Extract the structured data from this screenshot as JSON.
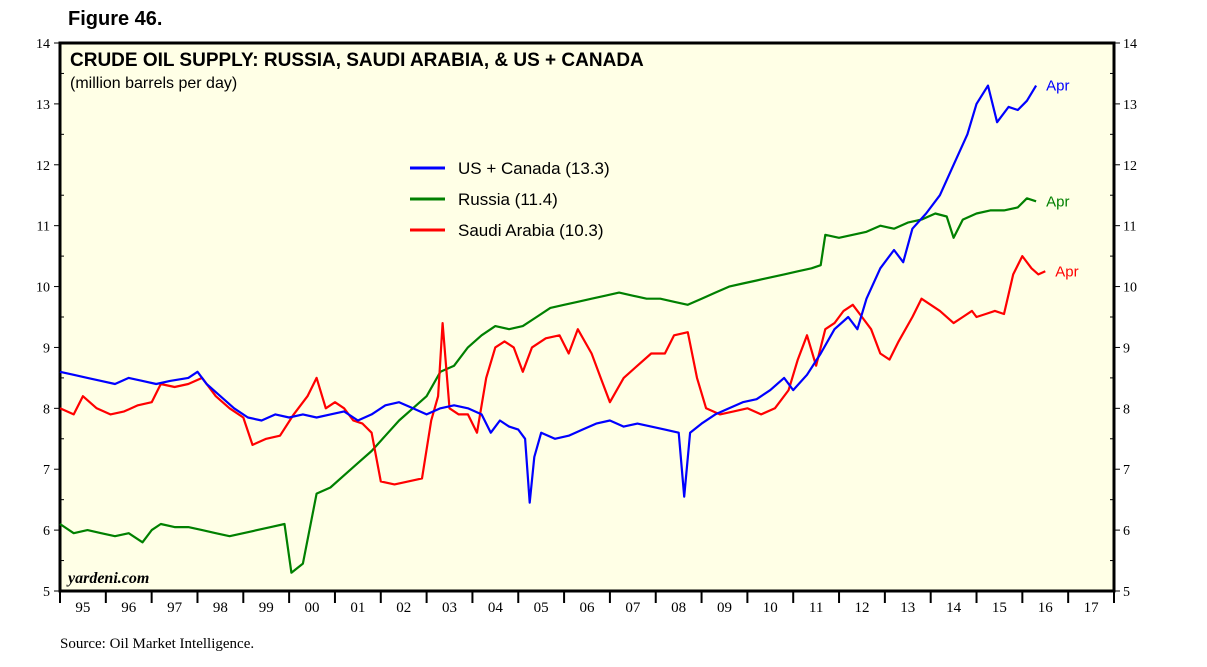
{
  "figure_label": "Figure 46.",
  "source_note": "Source: Oil Market Intelligence.",
  "colors": {
    "panel_bg": "#ffffe6",
    "us_canada": "#0000ff",
    "russia": "#008000",
    "saudi_arabia": "#ff0000"
  },
  "chart_data": {
    "type": "line",
    "title": "CRUDE OIL SUPPLY: RUSSIA, SAUDI ARABIA, & US + CANADA",
    "subtitle": "(million barrels per day)",
    "watermark": "yardeni.com",
    "ylim": [
      5,
      14
    ],
    "y_ticks": [
      5,
      6,
      7,
      8,
      9,
      10,
      11,
      12,
      13,
      14
    ],
    "x_range": [
      1995,
      2018
    ],
    "x_tick_labels": [
      "95",
      "96",
      "97",
      "98",
      "99",
      "00",
      "01",
      "02",
      "03",
      "04",
      "05",
      "06",
      "07",
      "08",
      "09",
      "10",
      "11",
      "12",
      "13",
      "14",
      "15",
      "16",
      "17"
    ],
    "grid": false,
    "legend_placement": "upper-center",
    "end_label": "Apr",
    "series": [
      {
        "name": "US + Canada (13.3)",
        "color": "#0000ff",
        "points": [
          [
            1995.0,
            8.6
          ],
          [
            1995.3,
            8.55
          ],
          [
            1995.6,
            8.5
          ],
          [
            1995.9,
            8.45
          ],
          [
            1996.2,
            8.4
          ],
          [
            1996.5,
            8.5
          ],
          [
            1996.8,
            8.45
          ],
          [
            1997.1,
            8.4
          ],
          [
            1997.4,
            8.45
          ],
          [
            1997.8,
            8.5
          ],
          [
            1998.0,
            8.6
          ],
          [
            1998.2,
            8.4
          ],
          [
            1998.5,
            8.2
          ],
          [
            1998.8,
            8.0
          ],
          [
            1999.1,
            7.85
          ],
          [
            1999.4,
            7.8
          ],
          [
            1999.7,
            7.9
          ],
          [
            2000.0,
            7.85
          ],
          [
            2000.3,
            7.9
          ],
          [
            2000.6,
            7.85
          ],
          [
            2000.9,
            7.9
          ],
          [
            2001.2,
            7.95
          ],
          [
            2001.5,
            7.8
          ],
          [
            2001.8,
            7.9
          ],
          [
            2002.1,
            8.05
          ],
          [
            2002.4,
            8.1
          ],
          [
            2002.7,
            8.0
          ],
          [
            2003.0,
            7.9
          ],
          [
            2003.3,
            8.0
          ],
          [
            2003.6,
            8.05
          ],
          [
            2003.9,
            8.0
          ],
          [
            2004.2,
            7.9
          ],
          [
            2004.4,
            7.6
          ],
          [
            2004.6,
            7.8
          ],
          [
            2004.8,
            7.7
          ],
          [
            2005.0,
            7.65
          ],
          [
            2005.15,
            7.5
          ],
          [
            2005.25,
            6.45
          ],
          [
            2005.35,
            7.2
          ],
          [
            2005.5,
            7.6
          ],
          [
            2005.8,
            7.5
          ],
          [
            2006.1,
            7.55
          ],
          [
            2006.4,
            7.65
          ],
          [
            2006.7,
            7.75
          ],
          [
            2007.0,
            7.8
          ],
          [
            2007.3,
            7.7
          ],
          [
            2007.6,
            7.75
          ],
          [
            2007.9,
            7.7
          ],
          [
            2008.2,
            7.65
          ],
          [
            2008.5,
            7.6
          ],
          [
            2008.62,
            6.55
          ],
          [
            2008.75,
            7.6
          ],
          [
            2009.0,
            7.75
          ],
          [
            2009.3,
            7.9
          ],
          [
            2009.6,
            8.0
          ],
          [
            2009.9,
            8.1
          ],
          [
            2010.2,
            8.15
          ],
          [
            2010.5,
            8.3
          ],
          [
            2010.8,
            8.5
          ],
          [
            2011.0,
            8.3
          ],
          [
            2011.3,
            8.55
          ],
          [
            2011.6,
            8.9
          ],
          [
            2011.9,
            9.3
          ],
          [
            2012.2,
            9.5
          ],
          [
            2012.4,
            9.3
          ],
          [
            2012.6,
            9.8
          ],
          [
            2012.9,
            10.3
          ],
          [
            2013.2,
            10.6
          ],
          [
            2013.4,
            10.4
          ],
          [
            2013.6,
            10.95
          ],
          [
            2013.9,
            11.2
          ],
          [
            2014.2,
            11.5
          ],
          [
            2014.5,
            12.0
          ],
          [
            2014.8,
            12.5
          ],
          [
            2015.0,
            13.0
          ],
          [
            2015.25,
            13.3
          ],
          [
            2015.45,
            12.7
          ],
          [
            2015.7,
            12.95
          ],
          [
            2015.9,
            12.9
          ],
          [
            2016.1,
            13.05
          ],
          [
            2016.3,
            13.3
          ]
        ]
      },
      {
        "name": "Russia (11.4)",
        "color": "#008000",
        "points": [
          [
            1995.0,
            6.1
          ],
          [
            1995.3,
            5.95
          ],
          [
            1995.6,
            6.0
          ],
          [
            1995.9,
            5.95
          ],
          [
            1996.2,
            5.9
          ],
          [
            1996.5,
            5.95
          ],
          [
            1996.8,
            5.8
          ],
          [
            1997.0,
            6.0
          ],
          [
            1997.2,
            6.1
          ],
          [
            1997.5,
            6.05
          ],
          [
            1997.8,
            6.05
          ],
          [
            1998.1,
            6.0
          ],
          [
            1998.4,
            5.95
          ],
          [
            1998.7,
            5.9
          ],
          [
            1999.0,
            5.95
          ],
          [
            1999.3,
            6.0
          ],
          [
            1999.6,
            6.05
          ],
          [
            1999.9,
            6.1
          ],
          [
            2000.05,
            5.3
          ],
          [
            2000.3,
            5.45
          ],
          [
            2000.6,
            6.6
          ],
          [
            2000.9,
            6.7
          ],
          [
            2001.2,
            6.9
          ],
          [
            2001.5,
            7.1
          ],
          [
            2001.8,
            7.3
          ],
          [
            2002.1,
            7.55
          ],
          [
            2002.4,
            7.8
          ],
          [
            2002.7,
            8.0
          ],
          [
            2003.0,
            8.2
          ],
          [
            2003.3,
            8.6
          ],
          [
            2003.6,
            8.7
          ],
          [
            2003.9,
            9.0
          ],
          [
            2004.2,
            9.2
          ],
          [
            2004.5,
            9.35
          ],
          [
            2004.8,
            9.3
          ],
          [
            2005.1,
            9.35
          ],
          [
            2005.4,
            9.5
          ],
          [
            2005.7,
            9.65
          ],
          [
            2006.0,
            9.7
          ],
          [
            2006.3,
            9.75
          ],
          [
            2006.6,
            9.8
          ],
          [
            2006.9,
            9.85
          ],
          [
            2007.2,
            9.9
          ],
          [
            2007.5,
            9.85
          ],
          [
            2007.8,
            9.8
          ],
          [
            2008.1,
            9.8
          ],
          [
            2008.4,
            9.75
          ],
          [
            2008.7,
            9.7
          ],
          [
            2009.0,
            9.8
          ],
          [
            2009.3,
            9.9
          ],
          [
            2009.6,
            10.0
          ],
          [
            2009.9,
            10.05
          ],
          [
            2010.2,
            10.1
          ],
          [
            2010.5,
            10.15
          ],
          [
            2010.8,
            10.2
          ],
          [
            2011.1,
            10.25
          ],
          [
            2011.4,
            10.3
          ],
          [
            2011.6,
            10.35
          ],
          [
            2011.7,
            10.85
          ],
          [
            2012.0,
            10.8
          ],
          [
            2012.3,
            10.85
          ],
          [
            2012.6,
            10.9
          ],
          [
            2012.9,
            11.0
          ],
          [
            2013.2,
            10.95
          ],
          [
            2013.5,
            11.05
          ],
          [
            2013.8,
            11.1
          ],
          [
            2014.1,
            11.2
          ],
          [
            2014.35,
            11.15
          ],
          [
            2014.5,
            10.8
          ],
          [
            2014.7,
            11.1
          ],
          [
            2015.0,
            11.2
          ],
          [
            2015.3,
            11.25
          ],
          [
            2015.6,
            11.25
          ],
          [
            2015.9,
            11.3
          ],
          [
            2016.1,
            11.45
          ],
          [
            2016.3,
            11.4
          ]
        ]
      },
      {
        "name": "Saudi Arabia (10.3)",
        "color": "#ff0000",
        "points": [
          [
            1995.0,
            8.0
          ],
          [
            1995.3,
            7.9
          ],
          [
            1995.5,
            8.2
          ],
          [
            1995.8,
            8.0
          ],
          [
            1996.1,
            7.9
          ],
          [
            1996.4,
            7.95
          ],
          [
            1996.7,
            8.05
          ],
          [
            1997.0,
            8.1
          ],
          [
            1997.2,
            8.4
          ],
          [
            1997.5,
            8.35
          ],
          [
            1997.8,
            8.4
          ],
          [
            1998.1,
            8.5
          ],
          [
            1998.4,
            8.2
          ],
          [
            1998.7,
            8.0
          ],
          [
            1999.0,
            7.85
          ],
          [
            1999.2,
            7.4
          ],
          [
            1999.5,
            7.5
          ],
          [
            1999.8,
            7.55
          ],
          [
            2000.1,
            7.9
          ],
          [
            2000.4,
            8.2
          ],
          [
            2000.6,
            8.5
          ],
          [
            2000.8,
            8.0
          ],
          [
            2001.0,
            8.1
          ],
          [
            2001.2,
            8.0
          ],
          [
            2001.4,
            7.8
          ],
          [
            2001.6,
            7.75
          ],
          [
            2001.8,
            7.6
          ],
          [
            2002.0,
            6.8
          ],
          [
            2002.3,
            6.75
          ],
          [
            2002.6,
            6.8
          ],
          [
            2002.9,
            6.85
          ],
          [
            2003.1,
            7.8
          ],
          [
            2003.25,
            8.2
          ],
          [
            2003.35,
            9.4
          ],
          [
            2003.5,
            8.0
          ],
          [
            2003.7,
            7.9
          ],
          [
            2003.9,
            7.9
          ],
          [
            2004.1,
            7.6
          ],
          [
            2004.3,
            8.5
          ],
          [
            2004.5,
            9.0
          ],
          [
            2004.7,
            9.1
          ],
          [
            2004.9,
            9.0
          ],
          [
            2005.1,
            8.6
          ],
          [
            2005.3,
            9.0
          ],
          [
            2005.6,
            9.15
          ],
          [
            2005.9,
            9.2
          ],
          [
            2006.1,
            8.9
          ],
          [
            2006.3,
            9.3
          ],
          [
            2006.6,
            8.9
          ],
          [
            2006.8,
            8.5
          ],
          [
            2007.0,
            8.1
          ],
          [
            2007.3,
            8.5
          ],
          [
            2007.6,
            8.7
          ],
          [
            2007.9,
            8.9
          ],
          [
            2008.2,
            8.9
          ],
          [
            2008.4,
            9.2
          ],
          [
            2008.7,
            9.25
          ],
          [
            2008.9,
            8.5
          ],
          [
            2009.1,
            8.0
          ],
          [
            2009.4,
            7.9
          ],
          [
            2009.7,
            7.95
          ],
          [
            2010.0,
            8.0
          ],
          [
            2010.3,
            7.9
          ],
          [
            2010.6,
            8.0
          ],
          [
            2010.9,
            8.3
          ],
          [
            2011.1,
            8.8
          ],
          [
            2011.3,
            9.2
          ],
          [
            2011.5,
            8.7
          ],
          [
            2011.7,
            9.3
          ],
          [
            2011.9,
            9.4
          ],
          [
            2012.1,
            9.6
          ],
          [
            2012.3,
            9.7
          ],
          [
            2012.5,
            9.5
          ],
          [
            2012.7,
            9.3
          ],
          [
            2012.9,
            8.9
          ],
          [
            2013.1,
            8.8
          ],
          [
            2013.3,
            9.1
          ],
          [
            2013.6,
            9.5
          ],
          [
            2013.8,
            9.8
          ],
          [
            2014.0,
            9.7
          ],
          [
            2014.2,
            9.6
          ],
          [
            2014.5,
            9.4
          ],
          [
            2014.7,
            9.5
          ],
          [
            2014.9,
            9.6
          ],
          [
            2015.0,
            9.5
          ],
          [
            2015.2,
            9.55
          ],
          [
            2015.4,
            9.6
          ],
          [
            2015.6,
            9.55
          ],
          [
            2015.8,
            10.2
          ],
          [
            2016.0,
            10.5
          ],
          [
            2016.2,
            10.3
          ],
          [
            2016.35,
            10.2
          ],
          [
            2016.5,
            10.25
          ]
        ]
      }
    ]
  }
}
